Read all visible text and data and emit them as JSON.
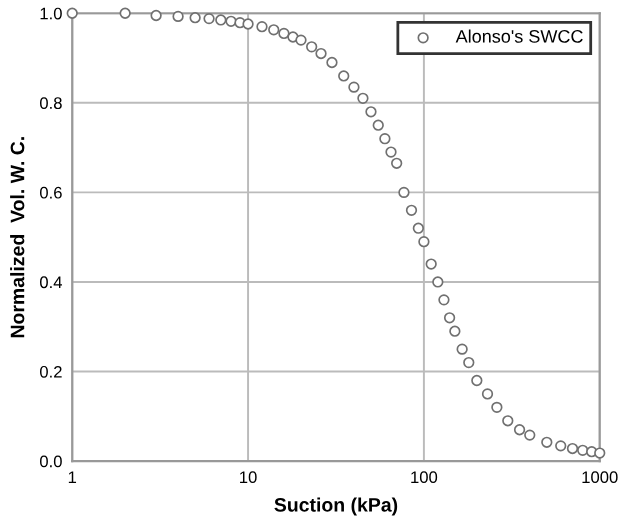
{
  "chart_data": {
    "type": "scatter",
    "xlabel": "Suction (kPa)",
    "ylabel": "Normalized  Vol. W. C.",
    "log": "x",
    "xlim": [
      1,
      1000
    ],
    "xticks": [
      1,
      10,
      100,
      1000
    ],
    "ylim": [
      0,
      1
    ],
    "yticks": [
      {
        "value": 0,
        "label": "0.0"
      },
      0.2,
      0.4,
      0.6,
      0.8,
      {
        "value": 1,
        "label": "1.0"
      }
    ],
    "grid": true,
    "legend": "top right",
    "marker": "circle",
    "series": [
      {
        "name": "Alonso's SWCC",
        "color": "#707070",
        "x": [
          1,
          2,
          3,
          4,
          5,
          6,
          7,
          8,
          9,
          10,
          12,
          14,
          16,
          18,
          20,
          23,
          26,
          30,
          35,
          40,
          45,
          50,
          55,
          60,
          65,
          70,
          77,
          85,
          93,
          100,
          110,
          120,
          130,
          140,
          150,
          165,
          180,
          200,
          230,
          260,
          300,
          350,
          400,
          500,
          600,
          700,
          800,
          900,
          1000
        ],
        "values": [
          1.0,
          1.0,
          0.995,
          0.993,
          0.99,
          0.988,
          0.985,
          0.982,
          0.979,
          0.976,
          0.97,
          0.963,
          0.955,
          0.947,
          0.94,
          0.925,
          0.91,
          0.89,
          0.86,
          0.835,
          0.81,
          0.78,
          0.75,
          0.72,
          0.69,
          0.665,
          0.6,
          0.56,
          0.52,
          0.49,
          0.44,
          0.4,
          0.36,
          0.32,
          0.29,
          0.25,
          0.22,
          0.18,
          0.15,
          0.12,
          0.09,
          0.07,
          0.058,
          0.042,
          0.034,
          0.028,
          0.024,
          0.021,
          0.018
        ]
      }
    ]
  }
}
